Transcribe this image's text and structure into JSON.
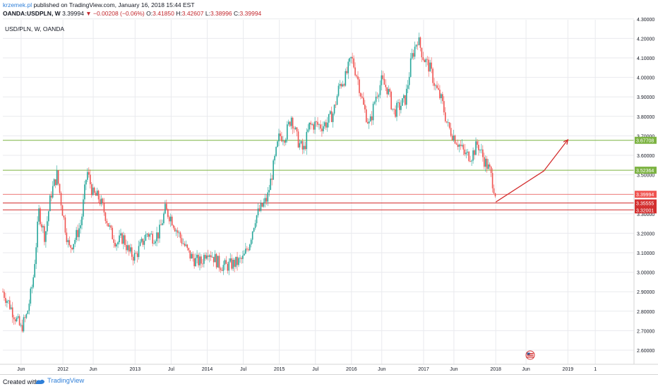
{
  "header": {
    "author": "krzemek.pl",
    "published": " published on TradingView.com, January 16, 2018 15:44 EST",
    "symbol": "OANDA:USDPLN, W",
    "last": "3.39994",
    "change": "−0.00208 (−0.06%)",
    "o_label": "O:",
    "o_value": "3.41850",
    "h_label": "H:",
    "h_value": "3.42607",
    "l_label": "L:",
    "l_value": "3.38996",
    "c_label": "C:",
    "c_value": "3.39994"
  },
  "chart_data": {
    "type": "candlestick",
    "title": "USD/PLN, W, OANDA",
    "y_ticks": [
      "2.60000",
      "2.70000",
      "2.80000",
      "2.90000",
      "3.00000",
      "3.10000",
      "3.20000",
      "3.30000",
      "3.40000",
      "3.50000",
      "3.60000",
      "3.70000",
      "3.80000",
      "3.90000",
      "4.00000",
      "4.10000",
      "4.20000",
      "4.30000"
    ],
    "x_ticks": [
      "Jun",
      "2012",
      "Jun",
      "2013",
      "Jul",
      "2014",
      "Jul",
      "2015",
      "Jul",
      "2016",
      "Jun",
      "2017",
      "Jun",
      "2018",
      "Jun",
      "2019",
      "1"
    ],
    "ylim": [
      2.56,
      4.36
    ],
    "price_levels": [
      {
        "label": "3.67708",
        "value": 3.67708,
        "color": "#7cb342"
      },
      {
        "label": "3.52364",
        "value": 3.52364,
        "color": "#7cb342"
      },
      {
        "label": "3.39994",
        "value": 3.39994,
        "color": "#ef5350"
      },
      {
        "label": "3.35555",
        "value": 3.35555,
        "color": "#d32f2f"
      },
      {
        "label": "3.32001",
        "value": 3.32001,
        "color": "#d32f2f"
      }
    ],
    "projection_arrow": [
      {
        "date": "2018-01",
        "price": 3.36
      },
      {
        "date": "2018-09",
        "price": 3.52
      },
      {
        "date": "2019-01",
        "price": 3.68
      }
    ],
    "price_path": [
      {
        "date": "2011-03",
        "price": 2.9
      },
      {
        "date": "2011-04",
        "price": 2.84
      },
      {
        "date": "2011-06",
        "price": 2.71
      },
      {
        "date": "2011-07",
        "price": 2.78
      },
      {
        "date": "2011-08",
        "price": 2.95
      },
      {
        "date": "2011-09",
        "price": 3.31
      },
      {
        "date": "2011-10",
        "price": 3.18
      },
      {
        "date": "2011-11",
        "price": 3.4
      },
      {
        "date": "2011-12",
        "price": 3.5
      },
      {
        "date": "2012-01",
        "price": 3.3
      },
      {
        "date": "2012-02",
        "price": 3.12
      },
      {
        "date": "2012-03",
        "price": 3.17
      },
      {
        "date": "2012-04",
        "price": 3.25
      },
      {
        "date": "2012-05",
        "price": 3.52
      },
      {
        "date": "2012-06",
        "price": 3.4
      },
      {
        "date": "2012-07",
        "price": 3.38
      },
      {
        "date": "2012-08",
        "price": 3.3
      },
      {
        "date": "2012-09",
        "price": 3.2
      },
      {
        "date": "2012-10",
        "price": 3.15
      },
      {
        "date": "2012-11",
        "price": 3.18
      },
      {
        "date": "2012-12",
        "price": 3.1
      },
      {
        "date": "2013-01",
        "price": 3.08
      },
      {
        "date": "2013-03",
        "price": 3.2
      },
      {
        "date": "2013-04",
        "price": 3.18
      },
      {
        "date": "2013-05",
        "price": 3.2
      },
      {
        "date": "2013-06",
        "price": 3.32
      },
      {
        "date": "2013-07",
        "price": 3.28
      },
      {
        "date": "2013-08",
        "price": 3.21
      },
      {
        "date": "2013-09",
        "price": 3.15
      },
      {
        "date": "2013-10",
        "price": 3.09
      },
      {
        "date": "2013-11",
        "price": 3.06
      },
      {
        "date": "2013-12",
        "price": 3.05
      },
      {
        "date": "2014-01",
        "price": 3.12
      },
      {
        "date": "2014-02",
        "price": 3.08
      },
      {
        "date": "2014-03",
        "price": 3.04
      },
      {
        "date": "2014-04",
        "price": 3.03
      },
      {
        "date": "2014-05",
        "price": 3.04
      },
      {
        "date": "2014-06",
        "price": 3.05
      },
      {
        "date": "2014-07",
        "price": 3.07
      },
      {
        "date": "2014-08",
        "price": 3.15
      },
      {
        "date": "2014-09",
        "price": 3.28
      },
      {
        "date": "2014-10",
        "price": 3.33
      },
      {
        "date": "2014-11",
        "price": 3.38
      },
      {
        "date": "2014-12",
        "price": 3.54
      },
      {
        "date": "2015-01",
        "price": 3.7
      },
      {
        "date": "2015-02",
        "price": 3.7
      },
      {
        "date": "2015-03",
        "price": 3.8
      },
      {
        "date": "2015-04",
        "price": 3.68
      },
      {
        "date": "2015-05",
        "price": 3.62
      },
      {
        "date": "2015-06",
        "price": 3.75
      },
      {
        "date": "2015-07",
        "price": 3.76
      },
      {
        "date": "2015-08",
        "price": 3.75
      },
      {
        "date": "2015-09",
        "price": 3.77
      },
      {
        "date": "2015-10",
        "price": 3.82
      },
      {
        "date": "2015-11",
        "price": 3.96
      },
      {
        "date": "2015-12",
        "price": 4.0
      },
      {
        "date": "2016-01",
        "price": 4.1
      },
      {
        "date": "2016-02",
        "price": 4.0
      },
      {
        "date": "2016-03",
        "price": 3.85
      },
      {
        "date": "2016-04",
        "price": 3.75
      },
      {
        "date": "2016-05",
        "price": 3.9
      },
      {
        "date": "2016-06",
        "price": 3.98
      },
      {
        "date": "2016-07",
        "price": 3.94
      },
      {
        "date": "2016-08",
        "price": 3.82
      },
      {
        "date": "2016-09",
        "price": 3.85
      },
      {
        "date": "2016-10",
        "price": 3.89
      },
      {
        "date": "2016-11",
        "price": 4.1
      },
      {
        "date": "2016-12",
        "price": 4.2
      },
      {
        "date": "2017-01",
        "price": 4.1
      },
      {
        "date": "2017-02",
        "price": 4.05
      },
      {
        "date": "2017-03",
        "price": 3.95
      },
      {
        "date": "2017-04",
        "price": 3.88
      },
      {
        "date": "2017-05",
        "price": 3.75
      },
      {
        "date": "2017-06",
        "price": 3.7
      },
      {
        "date": "2017-07",
        "price": 3.65
      },
      {
        "date": "2017-08",
        "price": 3.6
      },
      {
        "date": "2017-09",
        "price": 3.6
      },
      {
        "date": "2017-10",
        "price": 3.66
      },
      {
        "date": "2017-11",
        "price": 3.58
      },
      {
        "date": "2017-12",
        "price": 3.52
      },
      {
        "date": "2018-01",
        "price": 3.4
      }
    ]
  },
  "footer": {
    "created": "Created with",
    "brand": "TradingView"
  },
  "colors": {
    "up": "#26a69a",
    "down": "#ef5350",
    "grid": "#e9eaee",
    "support_green": "#7cb342",
    "resistance_red": "#d32f2f",
    "arrow": "#d32f2f"
  },
  "icons": [
    "events-flag-icon",
    "tradingview-logo-icon"
  ]
}
